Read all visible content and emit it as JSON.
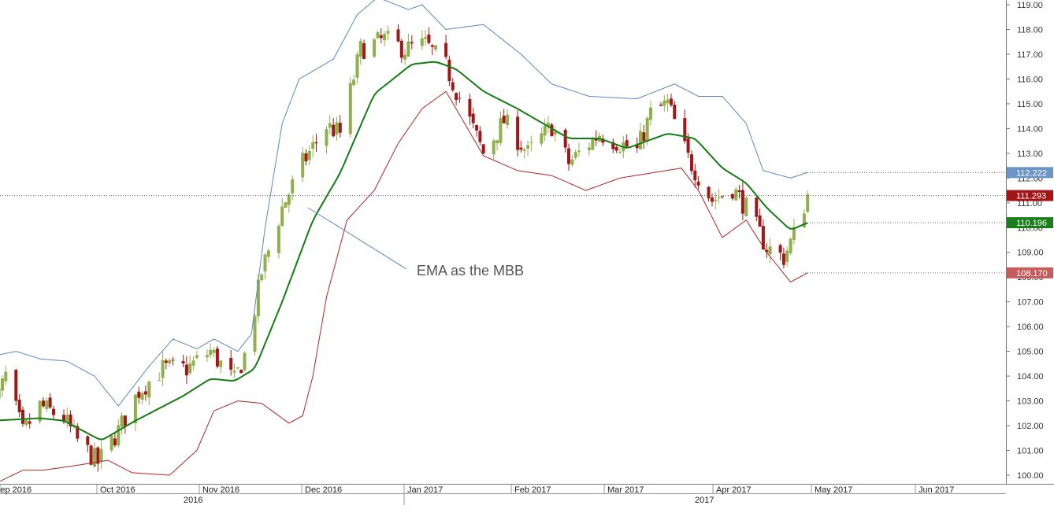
{
  "chart_data": {
    "type": "candlestick",
    "title": "",
    "xlabel": "",
    "ylabel": "",
    "ylim": [
      99.6,
      119.2
    ],
    "y_ticks": [
      "100.00",
      "101.00",
      "102.00",
      "103.00",
      "104.00",
      "105.00",
      "106.00",
      "107.00",
      "108.00",
      "109.00",
      "110.00",
      "111.00",
      "112.00",
      "113.00",
      "114.00",
      "115.00",
      "116.00",
      "117.00",
      "118.00",
      "119.00"
    ],
    "x_month_labels": [
      "Sep 2016",
      "Oct 2016",
      "Nov 2016",
      "Dec 2016",
      "Jan 2017",
      "Feb 2017",
      "Mar 2017",
      "Apr 2017",
      "May 2017",
      "Jun 2017"
    ],
    "x_year_labels": [
      "2016",
      "2017"
    ],
    "grid": false,
    "annotation": "EMA as the MBB",
    "last_values": {
      "upper_band": "112.222",
      "price": "111.293",
      "ema": "110.196",
      "lower_band": "108.170"
    },
    "colors": {
      "up_candle": "#8fb04a",
      "down_candle": "#a01818",
      "ema": "#137d13",
      "upper_band": "#5b87c4",
      "lower_band": "#b22222",
      "price_tag": "#a41515",
      "upper_tag": "#6b95c6",
      "ema_tag": "#1a7f1a",
      "lower_tag": "#c85c5c",
      "annotation_line": "#5b87c4"
    },
    "price_anchors": [
      [
        "2016-08-29",
        102.5
      ],
      [
        "2016-09-02",
        104.0
      ],
      [
        "2016-09-07",
        101.7
      ],
      [
        "2016-09-12",
        102.8
      ],
      [
        "2016-09-19",
        102.3
      ],
      [
        "2016-09-23",
        101.4
      ],
      [
        "2016-09-29",
        100.5
      ],
      [
        "2016-10-05",
        101.8
      ],
      [
        "2016-10-11",
        103.4
      ],
      [
        "2016-10-18",
        104.3
      ],
      [
        "2016-10-25",
        104.3
      ],
      [
        "2016-11-01",
        105.0
      ],
      [
        "2016-11-08",
        103.8
      ],
      [
        "2016-11-12",
        105.2
      ],
      [
        "2016-11-16",
        108.2
      ],
      [
        "2016-11-22",
        110.8
      ],
      [
        "2016-11-28",
        112.6
      ],
      [
        "2016-12-05",
        114.1
      ],
      [
        "2016-12-09",
        113.8
      ],
      [
        "2016-12-15",
        117.2
      ],
      [
        "2016-12-22",
        117.6
      ],
      [
        "2016-12-28",
        117.2
      ],
      [
        "2017-01-03",
        117.4
      ],
      [
        "2017-01-09",
        116.5
      ],
      [
        "2017-01-16",
        114.3
      ],
      [
        "2017-01-20",
        113.0
      ],
      [
        "2017-01-26",
        114.3
      ],
      [
        "2017-02-02",
        113.0
      ],
      [
        "2017-02-09",
        114.1
      ],
      [
        "2017-02-14",
        112.6
      ],
      [
        "2017-02-23",
        113.8
      ],
      [
        "2017-03-01",
        113.4
      ],
      [
        "2017-03-06",
        113.1
      ],
      [
        "2017-03-10",
        114.6
      ],
      [
        "2017-03-15",
        115.0
      ],
      [
        "2017-03-21",
        112.8
      ],
      [
        "2017-03-28",
        111.1
      ],
      [
        "2017-04-03",
        111.6
      ],
      [
        "2017-04-07",
        110.8
      ],
      [
        "2017-04-13",
        109.2
      ],
      [
        "2017-04-18",
        108.8
      ],
      [
        "2017-04-21",
        109.7
      ],
      [
        "2017-04-25",
        111.3
      ]
    ],
    "ema_anchors": [
      [
        "2016-08-29",
        102.2
      ],
      [
        "2016-09-12",
        102.3
      ],
      [
        "2016-09-19",
        102.2
      ],
      [
        "2016-09-30",
        101.4
      ],
      [
        "2016-10-10",
        102.2
      ],
      [
        "2016-10-24",
        103.2
      ],
      [
        "2016-11-01",
        103.9
      ],
      [
        "2016-11-08",
        103.8
      ],
      [
        "2016-11-14",
        104.3
      ],
      [
        "2016-11-22",
        107.0
      ],
      [
        "2016-12-01",
        110.3
      ],
      [
        "2016-12-09",
        112.2
      ],
      [
        "2016-12-19",
        115.4
      ],
      [
        "2016-12-30",
        116.6
      ],
      [
        "2017-01-06",
        116.7
      ],
      [
        "2017-01-12",
        116.4
      ],
      [
        "2017-01-20",
        115.5
      ],
      [
        "2017-01-30",
        114.8
      ],
      [
        "2017-02-09",
        114.0
      ],
      [
        "2017-02-14",
        113.6
      ],
      [
        "2017-02-23",
        113.6
      ],
      [
        "2017-03-03",
        113.2
      ],
      [
        "2017-03-15",
        113.8
      ],
      [
        "2017-03-23",
        113.6
      ],
      [
        "2017-03-31",
        112.4
      ],
      [
        "2017-04-07",
        111.8
      ],
      [
        "2017-04-13",
        110.8
      ],
      [
        "2017-04-20",
        109.9
      ],
      [
        "2017-04-25",
        110.196
      ]
    ],
    "upper_anchors": [
      [
        "2016-08-29",
        104.8
      ],
      [
        "2016-09-05",
        105.0
      ],
      [
        "2016-09-12",
        104.7
      ],
      [
        "2016-09-20",
        104.6
      ],
      [
        "2016-09-28",
        104.0
      ],
      [
        "2016-10-05",
        102.8
      ],
      [
        "2016-10-14",
        104.4
      ],
      [
        "2016-10-21",
        105.5
      ],
      [
        "2016-10-28",
        105.1
      ],
      [
        "2016-11-02",
        105.5
      ],
      [
        "2016-11-09",
        105.0
      ],
      [
        "2016-11-13",
        105.7
      ],
      [
        "2016-11-17",
        110.0
      ],
      [
        "2016-11-22",
        114.2
      ],
      [
        "2016-11-27",
        116.0
      ],
      [
        "2016-12-07",
        116.8
      ],
      [
        "2016-12-14",
        118.6
      ],
      [
        "2016-12-20",
        119.3
      ],
      [
        "2016-12-29",
        118.8
      ],
      [
        "2017-01-02",
        119.0
      ],
      [
        "2017-01-09",
        118.0
      ],
      [
        "2017-01-20",
        118.2
      ],
      [
        "2017-01-31",
        117.0
      ],
      [
        "2017-02-09",
        115.8
      ],
      [
        "2017-02-20",
        115.3
      ],
      [
        "2017-03-06",
        115.2
      ],
      [
        "2017-03-17",
        115.8
      ],
      [
        "2017-03-24",
        115.3
      ],
      [
        "2017-03-31",
        115.3
      ],
      [
        "2017-04-07",
        114.2
      ],
      [
        "2017-04-12",
        112.3
      ],
      [
        "2017-04-20",
        112.0
      ],
      [
        "2017-04-25",
        112.222
      ]
    ],
    "lower_anchors": [
      [
        "2016-08-29",
        99.6
      ],
      [
        "2016-09-07",
        100.2
      ],
      [
        "2016-09-13",
        100.2
      ],
      [
        "2016-09-23",
        100.4
      ],
      [
        "2016-10-02",
        100.6
      ],
      [
        "2016-10-09",
        100.1
      ],
      [
        "2016-10-20",
        100.0
      ],
      [
        "2016-10-28",
        101.0
      ],
      [
        "2016-11-02",
        102.6
      ],
      [
        "2016-11-09",
        103.0
      ],
      [
        "2016-11-16",
        102.9
      ],
      [
        "2016-11-24",
        102.1
      ],
      [
        "2016-11-28",
        102.4
      ],
      [
        "2016-12-01",
        104.0
      ],
      [
        "2016-12-05",
        107.2
      ],
      [
        "2016-12-11",
        110.3
      ],
      [
        "2016-12-19",
        111.5
      ],
      [
        "2016-12-26",
        113.4
      ],
      [
        "2017-01-02",
        114.8
      ],
      [
        "2017-01-09",
        115.5
      ],
      [
        "2017-01-20",
        112.9
      ],
      [
        "2017-01-30",
        112.3
      ],
      [
        "2017-02-09",
        112.1
      ],
      [
        "2017-02-19",
        111.5
      ],
      [
        "2017-03-01",
        112.0
      ],
      [
        "2017-03-10",
        112.2
      ],
      [
        "2017-03-19",
        112.4
      ],
      [
        "2017-03-24",
        111.5
      ],
      [
        "2017-03-31",
        109.6
      ],
      [
        "2017-04-07",
        110.3
      ],
      [
        "2017-04-13",
        109.0
      ],
      [
        "2017-04-20",
        107.8
      ],
      [
        "2017-04-25",
        108.17
      ]
    ]
  }
}
